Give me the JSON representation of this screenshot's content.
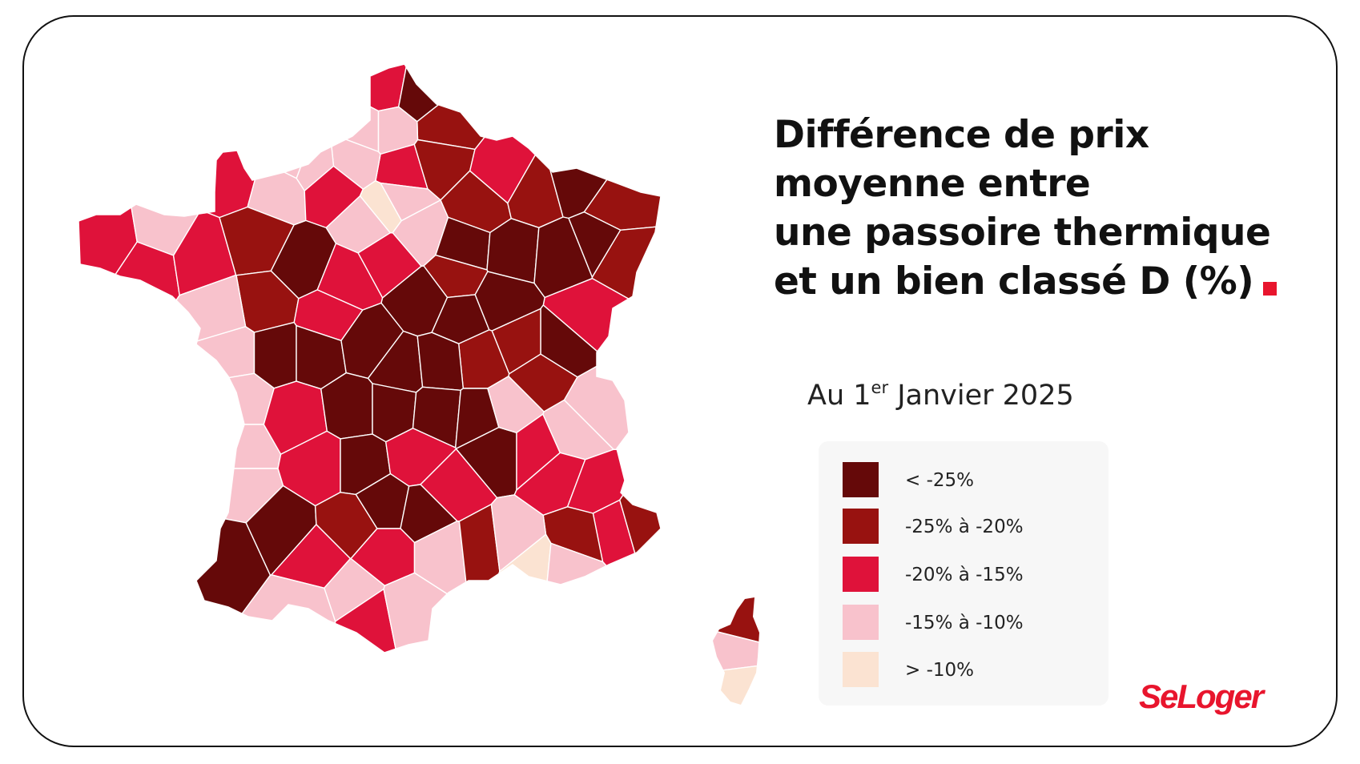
{
  "title_lines": [
    "Différence de prix",
    "moyenne entre",
    "une passoire thermique",
    "et un bien classé D (%)"
  ],
  "subtitle": {
    "prefix": "Au 1",
    "superscript": "er",
    "suffix": " Janvier 2025"
  },
  "colors": {
    "lt25": "#650909",
    "r25_20": "#981210",
    "r20_15": "#df123a",
    "r15_10": "#f8c2cc",
    "gt10": "#fbe3d2",
    "accent": "#e8152d"
  },
  "legend": {
    "items": [
      {
        "label": "< -25%",
        "color": "#650909"
      },
      {
        "label": "-25% à -20%",
        "color": "#981210"
      },
      {
        "label": "-20% à -15%",
        "color": "#df123a"
      },
      {
        "label": "-15% à -10%",
        "color": "#f8c2cc"
      },
      {
        "label": "> -10%",
        "color": "#fbe3d2"
      }
    ]
  },
  "logo": "SeLoger"
}
